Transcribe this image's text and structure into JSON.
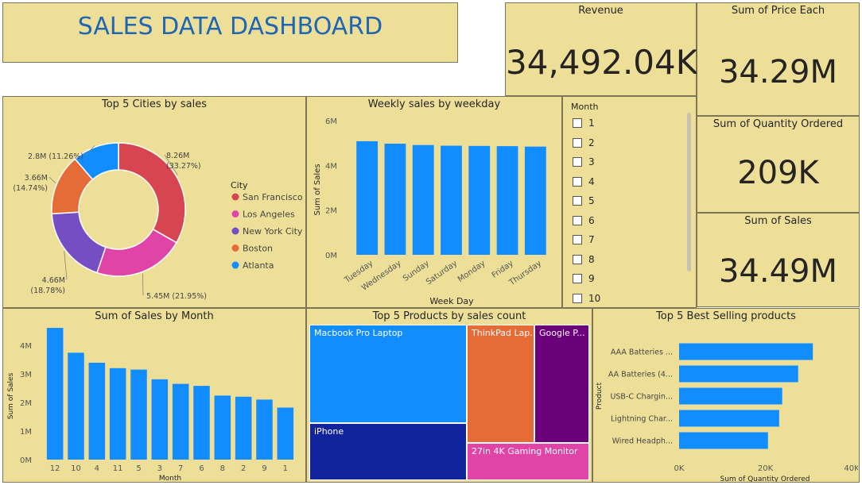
{
  "dashboard": {
    "title": "SALES DATA DASHBOARD"
  },
  "kpis": {
    "revenue": {
      "label": "Revenue",
      "value": "34,492.04K"
    },
    "price_each": {
      "label": "Sum of Price Each",
      "value": "34.29M"
    },
    "quantity": {
      "label": "Sum of Quantity Ordered",
      "value": "209K"
    },
    "sales": {
      "label": "Sum of Sales",
      "value": "34.49M"
    }
  },
  "slicer": {
    "title": "Month",
    "options": [
      "1",
      "2",
      "3",
      "4",
      "5",
      "6",
      "7",
      "8",
      "9",
      "10"
    ]
  },
  "colors": {
    "tile_bg": "#eedf98",
    "bar": "#118dff",
    "title": "#1f67b4"
  },
  "chart_data": [
    {
      "type": "pie",
      "title": "Top 5 Cities by sales",
      "legend_title": "City",
      "legend_position": "right",
      "slices": [
        {
          "name": "San Francisco",
          "value": 8.26,
          "label": "8.26M",
          "pct": "(33.27%)",
          "color": "#d64550"
        },
        {
          "name": "Los Angeles",
          "value": 5.45,
          "label": "5.45M (21.95%)",
          "pct": "",
          "color": "#e044a7"
        },
        {
          "name": "New York City",
          "value": 4.66,
          "label": "4.66M",
          "pct": "(18.78%)",
          "color": "#744ec2"
        },
        {
          "name": "Boston",
          "value": 3.66,
          "label": "3.66M",
          "pct": "(14.74%)",
          "color": "#e66c37"
        },
        {
          "name": "Atlanta",
          "value": 2.8,
          "label": "2.8M (11.26%)",
          "pct": "",
          "color": "#118dff"
        }
      ]
    },
    {
      "type": "bar",
      "title": "Weekly sales by weekday",
      "xlabel": "Week Day",
      "ylabel": "Sum of Sales",
      "ylim": [
        0,
        6000000
      ],
      "yticks": [
        {
          "v": 0,
          "label": "0M"
        },
        {
          "v": 2000000,
          "label": "2M"
        },
        {
          "v": 4000000,
          "label": "4M"
        },
        {
          "v": 6000000,
          "label": "6M"
        }
      ],
      "categories": [
        "Tuesday",
        "Wednesday",
        "Sunday",
        "Saturday",
        "Monday",
        "Friday",
        "Thursday"
      ],
      "values": [
        5080000,
        4970000,
        4910000,
        4880000,
        4870000,
        4860000,
        4840000
      ]
    },
    {
      "type": "bar",
      "title": "Sum of Sales by Month",
      "xlabel": "Month",
      "ylabel": "Sum of Sales",
      "ylim": [
        0,
        4500000
      ],
      "yticks": [
        {
          "v": 0,
          "label": "0M"
        },
        {
          "v": 1000000,
          "label": "1M"
        },
        {
          "v": 2000000,
          "label": "2M"
        },
        {
          "v": 3000000,
          "label": "3M"
        },
        {
          "v": 4000000,
          "label": "4M"
        }
      ],
      "categories": [
        "12",
        "10",
        "4",
        "11",
        "5",
        "3",
        "7",
        "6",
        "8",
        "2",
        "9",
        "1"
      ],
      "values": [
        4610000,
        3740000,
        3390000,
        3200000,
        3150000,
        2810000,
        2650000,
        2580000,
        2240000,
        2200000,
        2100000,
        1820000
      ]
    },
    {
      "type": "treemap",
      "title": "Top 5 Products by sales count",
      "items": [
        {
          "name": "Macbook Pro Laptop",
          "label": "Macbook Pro Laptop",
          "color": "#118dff"
        },
        {
          "name": "iPhone",
          "label": "iPhone",
          "color": "#12239e"
        },
        {
          "name": "ThinkPad Laptop",
          "label": "ThinkPad Lap...",
          "color": "#e66c37"
        },
        {
          "name": "Google Phone",
          "label": "Google P...",
          "color": "#6b007b"
        },
        {
          "name": "27in 4K Gaming Monitor",
          "label": "27in 4K Gaming Monitor",
          "color": "#e044a7"
        }
      ]
    },
    {
      "type": "bar",
      "orientation": "horizontal",
      "title": "Top 5 Best Selling products",
      "xlabel": "Sum of Quantity Ordered",
      "ylabel": "Product",
      "xlim": [
        0,
        40000
      ],
      "xticks": [
        {
          "v": 0,
          "label": "0K"
        },
        {
          "v": 20000,
          "label": "20K"
        },
        {
          "v": 40000,
          "label": "40K"
        }
      ],
      "categories": [
        "AAA Batteries ...",
        "AA Batteries (4...",
        "USB-C Chargin...",
        "Lightning Char...",
        "Wired Headph..."
      ],
      "values": [
        31000,
        27600,
        23900,
        23200,
        20600
      ]
    }
  ]
}
